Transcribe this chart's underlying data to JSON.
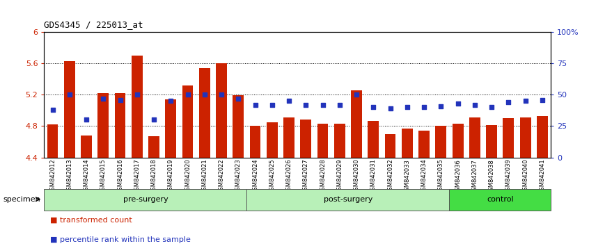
{
  "title": "GDS4345 / 225013_at",
  "samples": [
    "GSM842012",
    "GSM842013",
    "GSM842014",
    "GSM842015",
    "GSM842016",
    "GSM842017",
    "GSM842018",
    "GSM842019",
    "GSM842020",
    "GSM842021",
    "GSM842022",
    "GSM842023",
    "GSM842024",
    "GSM842025",
    "GSM842026",
    "GSM842027",
    "GSM842028",
    "GSM842029",
    "GSM842030",
    "GSM842031",
    "GSM842032",
    "GSM842033",
    "GSM842034",
    "GSM842035",
    "GSM842036",
    "GSM842037",
    "GSM842038",
    "GSM842039",
    "GSM842040",
    "GSM842041"
  ],
  "bar_values": [
    4.82,
    5.63,
    4.68,
    5.22,
    5.22,
    5.7,
    4.67,
    5.14,
    5.32,
    5.54,
    5.6,
    5.19,
    4.8,
    4.85,
    4.91,
    4.88,
    4.83,
    4.83,
    5.26,
    4.87,
    4.7,
    4.77,
    4.74,
    4.8,
    4.83,
    4.91,
    4.81,
    4.9,
    4.91,
    4.93
  ],
  "blue_pct": [
    38,
    50,
    30,
    47,
    46,
    50,
    30,
    45,
    50,
    50,
    50,
    47,
    42,
    42,
    45,
    42,
    42,
    42,
    50,
    40,
    39,
    40,
    40,
    41,
    43,
    42,
    40,
    44,
    45,
    46
  ],
  "ylim": [
    4.4,
    6.0
  ],
  "y_ticks_left": [
    4.4,
    4.8,
    5.2,
    5.6,
    6.0
  ],
  "ytick_labels_left": [
    "4.4",
    "4.8",
    "5.2",
    "5.6",
    "6"
  ],
  "ytick_labels_right": [
    "0",
    "25",
    "50",
    "75",
    "100%"
  ],
  "bar_color": "#cc2200",
  "dot_color": "#2233bb",
  "axis_color_left": "#cc2200",
  "axis_color_right": "#2233bb",
  "tick_label_bg": "#c8c8c8",
  "group_colors": [
    "#b8f0b8",
    "#b8f0b8",
    "#44dd44"
  ],
  "group_labels": [
    "pre-surgery",
    "post-surgery",
    "control"
  ],
  "group_ranges": [
    [
      0,
      11
    ],
    [
      12,
      23
    ],
    [
      24,
      29
    ]
  ],
  "legend_bar_label": "transformed count",
  "legend_dot_label": "percentile rank within the sample",
  "specimen_label": "specimen",
  "dotted_lines": [
    4.8,
    5.2,
    5.6
  ]
}
